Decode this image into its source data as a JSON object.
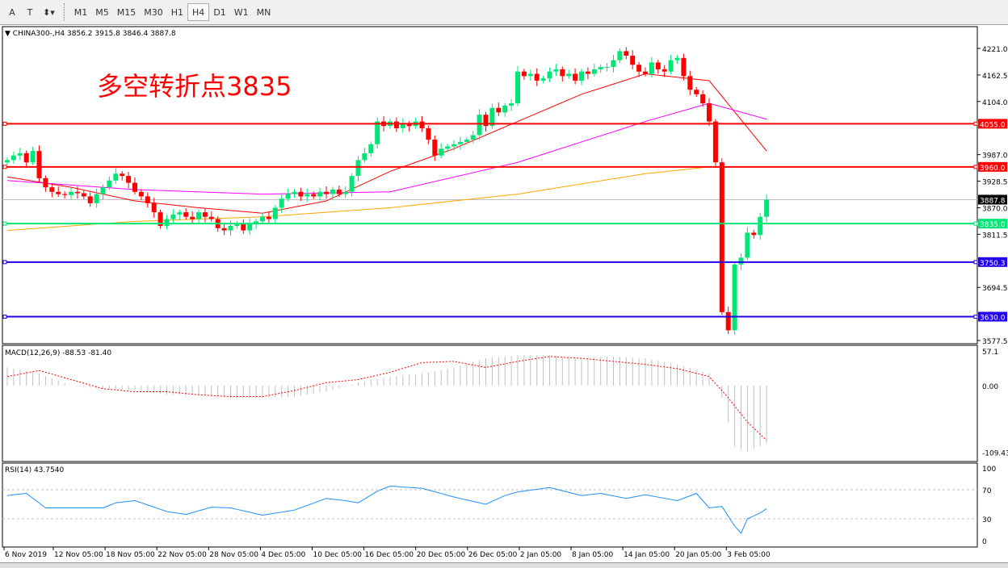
{
  "toolbar": {
    "tools": [
      {
        "name": "text-tool-icon",
        "label": "A"
      },
      {
        "name": "text-label-tool-icon",
        "label": "T"
      },
      {
        "name": "arrows-tool-icon",
        "label": "⬍▾"
      }
    ],
    "timeframes": [
      "M1",
      "M5",
      "M15",
      "M30",
      "H1",
      "H4",
      "D1",
      "W1",
      "MN"
    ],
    "active_timeframe": "H4"
  },
  "chart": {
    "header": "CHINA300-,H4  3856.2 3915.8 3846.4 3887.8",
    "annotation": "多空转折点3835",
    "price_ticks": [
      "4221.0",
      "4162.5",
      "4104.0",
      "3987.0",
      "3928.5",
      "3870.0",
      "3811.5",
      "3694.5",
      "3577.5"
    ],
    "levels": [
      {
        "price": 4055.0,
        "label": "4055.0",
        "color": "#ff0000"
      },
      {
        "price": 3960.0,
        "label": "3960.0",
        "color": "#ff0000"
      },
      {
        "price": 3835.0,
        "label": "3835.0",
        "color": "#00e676"
      },
      {
        "price": 3750.3,
        "label": "3750.3",
        "color": "#2200ee"
      },
      {
        "price": 3630.0,
        "label": "3630.0",
        "color": "#2200ee"
      }
    ],
    "current_price": "3887.8",
    "time_labels": [
      "6 Nov 2019",
      "12 Nov 05:00",
      "18 Nov 05:00",
      "22 Nov 05:00",
      "28 Nov 05:00",
      "4 Dec 05:00",
      "10 Dec 05:00",
      "16 Dec 05:00",
      "20 Dec 05:00",
      "26 Dec 05:00",
      "2 Jan 05:00",
      "8 Jan 05:00",
      "14 Jan 05:00",
      "20 Jan 05:00",
      "3 Feb 05:00"
    ],
    "bull_color": "#00e676",
    "bear_color": "#ff0000"
  },
  "chart_data": {
    "type": "candlestick",
    "first_open": 3970,
    "closes": [
      3975,
      3985,
      3990,
      3970,
      3995,
      3935,
      3915,
      3905,
      3900,
      3898,
      3905,
      3902,
      3895,
      3880,
      3900,
      3915,
      3930,
      3945,
      3940,
      3925,
      3905,
      3895,
      3880,
      3860,
      3830,
      3845,
      3855,
      3860,
      3850,
      3845,
      3860,
      3850,
      3845,
      3825,
      3820,
      3830,
      3835,
      3820,
      3835,
      3840,
      3850,
      3845,
      3870,
      3890,
      3900,
      3905,
      3895,
      3900,
      3895,
      3905,
      3900,
      3910,
      3900,
      3905,
      3940,
      3975,
      3990,
      4010,
      4060,
      4050,
      4060,
      4045,
      4055,
      4050,
      4060,
      4045,
      4020,
      3985,
      4000,
      4005,
      4010,
      4015,
      4020,
      4030,
      4075,
      4050,
      4090,
      4080,
      4095,
      4100,
      4170,
      4160,
      4165,
      4150,
      4155,
      4170,
      4175,
      4160,
      4165,
      4150,
      4170,
      4165,
      4175,
      4180,
      4180,
      4195,
      4215,
      4205,
      4185,
      4170,
      4165,
      4190,
      4175,
      4170,
      4195,
      4200,
      4160,
      4130,
      4120,
      4100,
      4060,
      3970,
      3640,
      3600,
      3745,
      3760,
      3815,
      3810,
      3850,
      3887.8
    ],
    "ma_lines": [
      {
        "color": "#ff0000",
        "points": [
          [
            0,
            3938
          ],
          [
            10,
            3915
          ],
          [
            20,
            3885
          ],
          [
            30,
            3870
          ],
          [
            40,
            3858
          ],
          [
            50,
            3885
          ],
          [
            60,
            3950
          ],
          [
            70,
            4000
          ],
          [
            80,
            4060
          ],
          [
            90,
            4120
          ],
          [
            100,
            4165
          ],
          [
            110,
            4150
          ],
          [
            119,
            3995
          ]
        ]
      },
      {
        "color": "#ff00ff",
        "points": [
          [
            0,
            3930
          ],
          [
            20,
            3910
          ],
          [
            40,
            3900
          ],
          [
            60,
            3905
          ],
          [
            80,
            3970
          ],
          [
            100,
            4060
          ],
          [
            110,
            4100
          ],
          [
            119,
            4065
          ]
        ]
      },
      {
        "color": "#ffa500",
        "points": [
          [
            0,
            3820
          ],
          [
            20,
            3840
          ],
          [
            40,
            3850
          ],
          [
            60,
            3870
          ],
          [
            80,
            3900
          ],
          [
            100,
            3945
          ],
          [
            110,
            3960
          ],
          [
            119,
            3960
          ]
        ]
      }
    ],
    "macd": {
      "label": "MACD(12,26,9) -88.53 -81.40",
      "ticks": [
        "57.1",
        "0.00",
        "-109.43"
      ],
      "histogram": [
        [
          0,
          30
        ],
        [
          5,
          20
        ],
        [
          10,
          0
        ],
        [
          15,
          -5
        ],
        [
          20,
          -8
        ],
        [
          25,
          -15
        ],
        [
          30,
          -15
        ],
        [
          35,
          -20
        ],
        [
          40,
          -20
        ],
        [
          45,
          -18
        ],
        [
          50,
          -10
        ],
        [
          55,
          5
        ],
        [
          60,
          15
        ],
        [
          65,
          20
        ],
        [
          70,
          30
        ],
        [
          75,
          45
        ],
        [
          80,
          50
        ],
        [
          85,
          50
        ],
        [
          90,
          45
        ],
        [
          95,
          48
        ],
        [
          100,
          45
        ],
        [
          105,
          35
        ],
        [
          110,
          20
        ],
        [
          112,
          -20
        ],
        [
          114,
          -100
        ],
        [
          116,
          -109
        ],
        [
          119,
          -95
        ]
      ],
      "signal": [
        [
          0,
          15
        ],
        [
          5,
          25
        ],
        [
          10,
          10
        ],
        [
          15,
          -5
        ],
        [
          20,
          -10
        ],
        [
          25,
          -10
        ],
        [
          30,
          -15
        ],
        [
          35,
          -18
        ],
        [
          40,
          -18
        ],
        [
          45,
          -8
        ],
        [
          50,
          5
        ],
        [
          55,
          10
        ],
        [
          60,
          22
        ],
        [
          65,
          38
        ],
        [
          70,
          40
        ],
        [
          75,
          30
        ],
        [
          80,
          40
        ],
        [
          85,
          48
        ],
        [
          90,
          45
        ],
        [
          95,
          40
        ],
        [
          100,
          35
        ],
        [
          105,
          28
        ],
        [
          110,
          15
        ],
        [
          113,
          -20
        ],
        [
          116,
          -60
        ],
        [
          119,
          -90
        ]
      ]
    },
    "rsi": {
      "label": "RSI(14) 43.7540",
      "ticks": [
        "100",
        "70",
        "30",
        "0"
      ],
      "values": [
        [
          0,
          62
        ],
        [
          3,
          65
        ],
        [
          6,
          45
        ],
        [
          10,
          45
        ],
        [
          15,
          45
        ],
        [
          17,
          52
        ],
        [
          20,
          55
        ],
        [
          25,
          40
        ],
        [
          28,
          36
        ],
        [
          32,
          46
        ],
        [
          35,
          45
        ],
        [
          40,
          35
        ],
        [
          45,
          42
        ],
        [
          50,
          58
        ],
        [
          53,
          55
        ],
        [
          55,
          52
        ],
        [
          58,
          68
        ],
        [
          60,
          75
        ],
        [
          65,
          72
        ],
        [
          70,
          60
        ],
        [
          75,
          50
        ],
        [
          78,
          62
        ],
        [
          80,
          67
        ],
        [
          85,
          73
        ],
        [
          90,
          62
        ],
        [
          93,
          65
        ],
        [
          97,
          58
        ],
        [
          100,
          63
        ],
        [
          105,
          55
        ],
        [
          108,
          65
        ],
        [
          110,
          45
        ],
        [
          112,
          47
        ],
        [
          114,
          20
        ],
        [
          115,
          10
        ],
        [
          116,
          30
        ],
        [
          118,
          38
        ],
        [
          119,
          44
        ]
      ]
    }
  }
}
